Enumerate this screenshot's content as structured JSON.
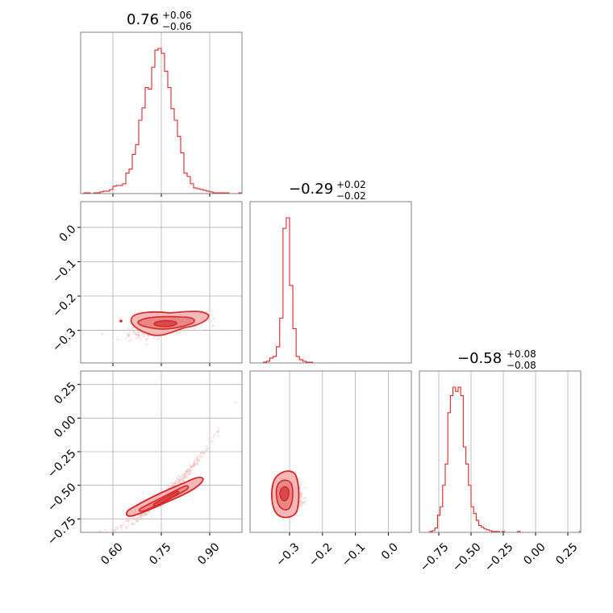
{
  "figure": {
    "accent_color": "#d62728",
    "fill_light": "#f4b8b8",
    "fill_mid": "#e98686",
    "fill_dark": "#d9484a",
    "grid_color": "#b0b0b0",
    "frame_color": "#808080"
  },
  "parameters": [
    {
      "title_value": "0.76",
      "title_plus": "+0.06",
      "title_minus": "−0.06"
    },
    {
      "title_value": "−0.29",
      "title_plus": "+0.02",
      "title_minus": "−0.02"
    },
    {
      "title_value": "−0.58",
      "title_plus": "+0.08",
      "title_minus": "−0.08"
    }
  ],
  "chart_data": [
    {
      "type": "histogram",
      "panel": "hist-0",
      "xlim": [
        0.5,
        1.0
      ],
      "xticks": [
        0.6,
        0.75,
        0.9
      ],
      "xtick_labels": [
        "0.60",
        "0.75",
        "0.90"
      ],
      "bin_edges": [
        0.5,
        0.51,
        0.52,
        0.53,
        0.54,
        0.55,
        0.56,
        0.57,
        0.58,
        0.59,
        0.6,
        0.61,
        0.62,
        0.63,
        0.64,
        0.65,
        0.66,
        0.67,
        0.68,
        0.69,
        0.7,
        0.71,
        0.72,
        0.73,
        0.74,
        0.75,
        0.76,
        0.77,
        0.78,
        0.79,
        0.8,
        0.81,
        0.82,
        0.83,
        0.84,
        0.85,
        0.86,
        0.87,
        0.88,
        0.89,
        0.9,
        0.91,
        0.92,
        0.93,
        0.94,
        0.95,
        0.96,
        0.97,
        0.98,
        0.99,
        1.0
      ],
      "counts": [
        0,
        1,
        1,
        0,
        1,
        1,
        2,
        3,
        3,
        5,
        9,
        10,
        10,
        12,
        25,
        30,
        48,
        60,
        90,
        105,
        130,
        128,
        155,
        176,
        178,
        172,
        150,
        130,
        104,
        90,
        70,
        50,
        25,
        21,
        12,
        7,
        6,
        5,
        4,
        3,
        2,
        1,
        1,
        1,
        1,
        1,
        0,
        0,
        0,
        1
      ]
    },
    {
      "type": "scatter-contour",
      "panel": "p1-vs-p0",
      "xlim": [
        0.5,
        1.0
      ],
      "ylim": [
        -0.395,
        0.075
      ],
      "xticks": [
        0.6,
        0.75,
        0.9
      ],
      "yticks": [
        0.0,
        -0.1,
        -0.2,
        -0.3
      ],
      "ytick_labels": [
        "0.0",
        "−0.1",
        "−0.2",
        "−0.3"
      ],
      "center": [
        0.76,
        -0.29
      ],
      "spread": [
        0.06,
        0.02
      ]
    },
    {
      "type": "histogram",
      "panel": "hist-1",
      "xlim": [
        -0.42,
        0.07
      ],
      "bin_edges": [
        -0.42,
        -0.41,
        -0.4,
        -0.39,
        -0.38,
        -0.37,
        -0.36,
        -0.35,
        -0.34,
        -0.33,
        -0.32,
        -0.31,
        -0.3,
        -0.29,
        -0.28,
        -0.27,
        -0.26,
        -0.25,
        -0.24,
        -0.23,
        -0.22,
        -0.21,
        -0.2,
        -0.19,
        -0.18,
        -0.17,
        -0.16,
        -0.15,
        -0.14,
        -0.13,
        -0.12,
        -0.11,
        -0.1,
        -0.09,
        -0.08,
        -0.07,
        -0.06,
        -0.05,
        -0.04,
        -0.03,
        -0.02,
        -0.01,
        0.0,
        0.01,
        0.02,
        0.03,
        0.04,
        0.05,
        0.06,
        0.07
      ],
      "counts": [
        0,
        0,
        0,
        0,
        1,
        2,
        6,
        8,
        20,
        55,
        165,
        178,
        95,
        42,
        8,
        4,
        2,
        1,
        1,
        0,
        0,
        0,
        0,
        0,
        0,
        0,
        0,
        0,
        0,
        0,
        0,
        0,
        0,
        0,
        0,
        0,
        0,
        0,
        0,
        0,
        0,
        0,
        0,
        0,
        0,
        0,
        0,
        0,
        0
      ]
    },
    {
      "type": "scatter-contour",
      "panel": "p2-vs-p0",
      "xlim": [
        0.5,
        1.0
      ],
      "ylim": [
        -0.85,
        0.35
      ],
      "xticks": [
        0.6,
        0.75,
        0.9
      ],
      "xtick_labels": [
        "0.60",
        "0.75",
        "0.90"
      ],
      "yticks": [
        0.25,
        0.0,
        -0.25,
        -0.5,
        -0.75
      ],
      "ytick_labels": [
        "0.25",
        "0.00",
        "−0.25",
        "−0.50",
        "−0.75"
      ],
      "center": [
        0.76,
        -0.58
      ]
    },
    {
      "type": "scatter-contour",
      "panel": "p2-vs-p1",
      "xlim": [
        -0.42,
        0.07
      ],
      "ylim": [
        -0.85,
        0.35
      ],
      "xticks": [
        -0.3,
        -0.2,
        -0.1,
        0.0
      ],
      "xtick_labels": [
        "−0.3",
        "−0.2",
        "−0.1",
        "0.0"
      ],
      "center": [
        -0.29,
        -0.58
      ]
    },
    {
      "type": "histogram",
      "panel": "hist-2",
      "xlim": [
        -0.9,
        0.35
      ],
      "xticks": [
        -0.75,
        -0.5,
        -0.25,
        0.0,
        0.25
      ],
      "xtick_labels": [
        "−0.75",
        "−0.50",
        "−0.25",
        "0.00",
        "0.25"
      ],
      "bin_edges": [
        -0.9,
        -0.88,
        -0.86,
        -0.84,
        -0.82,
        -0.8,
        -0.78,
        -0.76,
        -0.74,
        -0.72,
        -0.7,
        -0.68,
        -0.66,
        -0.64,
        -0.62,
        -0.6,
        -0.58,
        -0.56,
        -0.54,
        -0.52,
        -0.5,
        -0.48,
        -0.46,
        -0.44,
        -0.42,
        -0.4,
        -0.38,
        -0.36,
        -0.34,
        -0.32,
        -0.3,
        -0.28,
        -0.26,
        -0.24,
        -0.22,
        -0.2,
        -0.18,
        -0.16,
        -0.14,
        -0.12,
        -0.1,
        -0.08,
        -0.06,
        -0.04,
        -0.02,
        0.0,
        0.02,
        0.04,
        0.06,
        0.08,
        0.1,
        0.12,
        0.14,
        0.16,
        0.18,
        0.2,
        0.22,
        0.24,
        0.26,
        0.28,
        0.3,
        0.32,
        0.34,
        0.35
      ],
      "counts": [
        0,
        0,
        0,
        0,
        1,
        2,
        5,
        20,
        30,
        55,
        80,
        140,
        160,
        170,
        165,
        170,
        160,
        100,
        80,
        55,
        30,
        22,
        14,
        8,
        6,
        4,
        3,
        2,
        1,
        1,
        1,
        0,
        1,
        0,
        0,
        0,
        0,
        0,
        1,
        0,
        0,
        0,
        0,
        0,
        0,
        0,
        0,
        0,
        0,
        0,
        0,
        0,
        0,
        0,
        0,
        0,
        0,
        0,
        0,
        0,
        0,
        0,
        1
      ]
    }
  ]
}
